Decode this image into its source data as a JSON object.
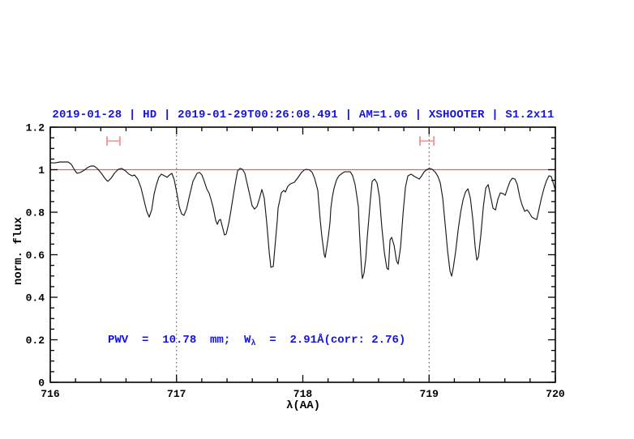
{
  "title": "2019-01-28 | HD | 2019-01-29T00:26:08.491 | AM=1.06 | XSHOOTER | S1.2x11",
  "annotation": {
    "pre": "PWV  =  10.78  mm;  W",
    "sub": "λ",
    "post": "  =  2.91Å(corr: 2.76)"
  },
  "colors": {
    "accent_blue": "#1414dd",
    "continuum_line": "#e06666",
    "marker": "#f19898",
    "spectrum": "#1a1a1a",
    "frame": "#000000",
    "dotted_reference": "#3a3a3a",
    "background": "#ffffff"
  },
  "chart_data": {
    "type": "line",
    "title": "2019-01-28 | HD | 2019-01-29T00:26:08.491 | AM=1.06 | XSHOOTER | S1.2x11",
    "xlabel": "λ(AA)",
    "ylabel": "norm. flux",
    "xlim": [
      716,
      720
    ],
    "ylim": [
      0,
      1.2
    ],
    "x_ticks": [
      716,
      717,
      718,
      719,
      720
    ],
    "x_tick_labels": [
      "716",
      "717",
      "718",
      "719",
      "720"
    ],
    "x_minor_step": 0.2,
    "y_ticks": [
      0,
      0.2,
      0.4,
      0.6,
      0.8,
      1,
      1.2
    ],
    "y_tick_labels": [
      "0",
      "0.2",
      "0.4",
      "0.6",
      "0.8",
      "1",
      "1.2"
    ],
    "y_minor_step": 0.05,
    "grid": false,
    "legend": false,
    "annotation": "PWV = 10.78 mm; Wλ = 2.91Å(corr: 2.76)",
    "continuum_level": 1.0,
    "reference_vlines": [
      717,
      719
    ],
    "range_markers": [
      {
        "x_center": 716.5,
        "half_width": 0.051,
        "y": 1.135,
        "cap_half_height": 0.022
      },
      {
        "x_center": 718.983,
        "half_width": 0.055,
        "y": 1.135,
        "cap_half_height": 0.022
      }
    ],
    "series": [
      {
        "name": "normalized spectrum",
        "points": [
          [
            716.0,
            1.032
          ],
          [
            716.039,
            1.032
          ],
          [
            716.077,
            1.036
          ],
          [
            716.116,
            1.036
          ],
          [
            716.141,
            1.036
          ],
          [
            716.167,
            1.025
          ],
          [
            716.193,
            0.998
          ],
          [
            716.212,
            0.983
          ],
          [
            716.238,
            0.987
          ],
          [
            716.27,
            0.998
          ],
          [
            716.295,
            1.01
          ],
          [
            716.321,
            1.017
          ],
          [
            716.347,
            1.017
          ],
          [
            716.372,
            1.006
          ],
          [
            716.405,
            0.983
          ],
          [
            716.437,
            0.956
          ],
          [
            716.456,
            0.945
          ],
          [
            716.482,
            0.96
          ],
          [
            716.507,
            0.983
          ],
          [
            716.539,
            1.002
          ],
          [
            716.565,
            1.006
          ],
          [
            716.597,
            0.994
          ],
          [
            716.623,
            0.979
          ],
          [
            716.649,
            0.971
          ],
          [
            716.668,
            0.975
          ],
          [
            716.693,
            0.956
          ],
          [
            716.719,
            0.914
          ],
          [
            716.745,
            0.85
          ],
          [
            716.764,
            0.804
          ],
          [
            716.783,
            0.777
          ],
          [
            716.803,
            0.811
          ],
          [
            716.822,
            0.884
          ],
          [
            716.841,
            0.93
          ],
          [
            716.86,
            0.964
          ],
          [
            716.88,
            0.979
          ],
          [
            716.905,
            0.971
          ],
          [
            716.925,
            0.964
          ],
          [
            716.944,
            0.975
          ],
          [
            716.963,
            0.983
          ],
          [
            716.982,
            0.952
          ],
          [
            717.002,
            0.891
          ],
          [
            717.021,
            0.827
          ],
          [
            717.04,
            0.792
          ],
          [
            717.059,
            0.785
          ],
          [
            717.079,
            0.815
          ],
          [
            717.104,
            0.88
          ],
          [
            717.13,
            0.945
          ],
          [
            717.162,
            0.983
          ],
          [
            717.182,
            0.987
          ],
          [
            717.201,
            0.975
          ],
          [
            717.22,
            0.945
          ],
          [
            717.239,
            0.91
          ],
          [
            717.259,
            0.888
          ],
          [
            717.278,
            0.85
          ],
          [
            717.291,
            0.819
          ],
          [
            717.31,
            0.762
          ],
          [
            717.323,
            0.743
          ],
          [
            717.336,
            0.762
          ],
          [
            717.348,
            0.766
          ],
          [
            717.368,
            0.72
          ],
          [
            717.38,
            0.693
          ],
          [
            717.393,
            0.697
          ],
          [
            717.413,
            0.747
          ],
          [
            717.432,
            0.811
          ],
          [
            717.451,
            0.884
          ],
          [
            717.47,
            0.952
          ],
          [
            717.483,
            0.994
          ],
          [
            717.503,
            1.006
          ],
          [
            717.522,
            1.002
          ],
          [
            717.541,
            0.983
          ],
          [
            717.56,
            0.933
          ],
          [
            717.58,
            0.88
          ],
          [
            717.599,
            0.83
          ],
          [
            717.618,
            0.815
          ],
          [
            717.637,
            0.827
          ],
          [
            717.657,
            0.865
          ],
          [
            717.676,
            0.907
          ],
          [
            717.695,
            0.865
          ],
          [
            717.714,
            0.75
          ],
          [
            717.734,
            0.61
          ],
          [
            717.747,
            0.541
          ],
          [
            717.766,
            0.545
          ],
          [
            717.772,
            0.587
          ],
          [
            717.785,
            0.674
          ],
          [
            717.798,
            0.762
          ],
          [
            717.804,
            0.819
          ],
          [
            717.83,
            0.891
          ],
          [
            717.849,
            0.903
          ],
          [
            717.862,
            0.895
          ],
          [
            717.881,
            0.922
          ],
          [
            717.901,
            0.933
          ],
          [
            717.933,
            0.941
          ],
          [
            717.958,
            0.96
          ],
          [
            717.99,
            0.987
          ],
          [
            718.01,
            0.998
          ],
          [
            718.029,
            1.002
          ],
          [
            718.055,
            0.998
          ],
          [
            718.074,
            0.987
          ],
          [
            718.093,
            0.96
          ],
          [
            718.119,
            0.903
          ],
          [
            718.125,
            0.853
          ],
          [
            718.138,
            0.762
          ],
          [
            718.151,
            0.686
          ],
          [
            718.17,
            0.598
          ],
          [
            718.177,
            0.587
          ],
          [
            718.19,
            0.636
          ],
          [
            718.202,
            0.686
          ],
          [
            718.215,
            0.75
          ],
          [
            718.222,
            0.819
          ],
          [
            718.235,
            0.876
          ],
          [
            718.248,
            0.914
          ],
          [
            718.267,
            0.952
          ],
          [
            718.286,
            0.971
          ],
          [
            718.312,
            0.983
          ],
          [
            718.331,
            0.99
          ],
          [
            718.35,
            0.99
          ],
          [
            718.376,
            0.99
          ],
          [
            718.395,
            0.971
          ],
          [
            718.414,
            0.93
          ],
          [
            718.44,
            0.827
          ],
          [
            718.446,
            0.739
          ],
          [
            718.453,
            0.655
          ],
          [
            718.466,
            0.522
          ],
          [
            718.472,
            0.488
          ],
          [
            718.485,
            0.514
          ],
          [
            718.498,
            0.579
          ],
          [
            718.511,
            0.686
          ],
          [
            718.536,
            0.865
          ],
          [
            718.549,
            0.945
          ],
          [
            718.569,
            0.956
          ],
          [
            718.588,
            0.937
          ],
          [
            718.607,
            0.872
          ],
          [
            718.626,
            0.728
          ],
          [
            718.646,
            0.61
          ],
          [
            718.665,
            0.537
          ],
          [
            718.678,
            0.53
          ],
          [
            718.691,
            0.67
          ],
          [
            718.704,
            0.682
          ],
          [
            718.723,
            0.644
          ],
          [
            718.742,
            0.571
          ],
          [
            718.755,
            0.556
          ],
          [
            718.774,
            0.636
          ],
          [
            718.794,
            0.796
          ],
          [
            718.813,
            0.918
          ],
          [
            718.832,
            0.971
          ],
          [
            718.858,
            0.979
          ],
          [
            718.877,
            0.971
          ],
          [
            718.896,
            0.964
          ],
          [
            718.922,
            0.956
          ],
          [
            718.941,
            0.971
          ],
          [
            718.961,
            0.99
          ],
          [
            718.986,
            1.002
          ],
          [
            719.006,
            1.006
          ],
          [
            719.025,
            1.002
          ],
          [
            719.051,
            0.987
          ],
          [
            719.07,
            0.968
          ],
          [
            719.089,
            0.937
          ],
          [
            719.108,
            0.865
          ],
          [
            719.128,
            0.739
          ],
          [
            719.147,
            0.617
          ],
          [
            719.166,
            0.522
          ],
          [
            719.179,
            0.499
          ],
          [
            719.192,
            0.541
          ],
          [
            719.211,
            0.617
          ],
          [
            719.231,
            0.72
          ],
          [
            719.25,
            0.8
          ],
          [
            719.269,
            0.857
          ],
          [
            719.288,
            0.895
          ],
          [
            719.308,
            0.91
          ],
          [
            719.327,
            0.865
          ],
          [
            719.346,
            0.77
          ],
          [
            719.365,
            0.636
          ],
          [
            719.378,
            0.575
          ],
          [
            719.391,
            0.59
          ],
          [
            719.41,
            0.693
          ],
          [
            719.43,
            0.827
          ],
          [
            719.449,
            0.914
          ],
          [
            719.468,
            0.93
          ],
          [
            719.487,
            0.876
          ],
          [
            719.506,
            0.819
          ],
          [
            719.526,
            0.811
          ],
          [
            719.545,
            0.861
          ],
          [
            719.564,
            0.891
          ],
          [
            719.583,
            0.888
          ],
          [
            719.603,
            0.88
          ],
          [
            719.622,
            0.914
          ],
          [
            719.641,
            0.945
          ],
          [
            719.66,
            0.96
          ],
          [
            719.68,
            0.956
          ],
          [
            719.699,
            0.93
          ],
          [
            719.718,
            0.872
          ],
          [
            719.737,
            0.834
          ],
          [
            719.757,
            0.804
          ],
          [
            719.776,
            0.811
          ],
          [
            719.795,
            0.796
          ],
          [
            719.814,
            0.777
          ],
          [
            719.834,
            0.77
          ],
          [
            719.853,
            0.766
          ],
          [
            719.872,
            0.819
          ],
          [
            719.891,
            0.869
          ],
          [
            719.911,
            0.914
          ],
          [
            719.93,
            0.948
          ],
          [
            719.949,
            0.971
          ],
          [
            719.968,
            0.968
          ],
          [
            719.987,
            0.93
          ],
          [
            720.0,
            0.903
          ]
        ]
      }
    ]
  }
}
